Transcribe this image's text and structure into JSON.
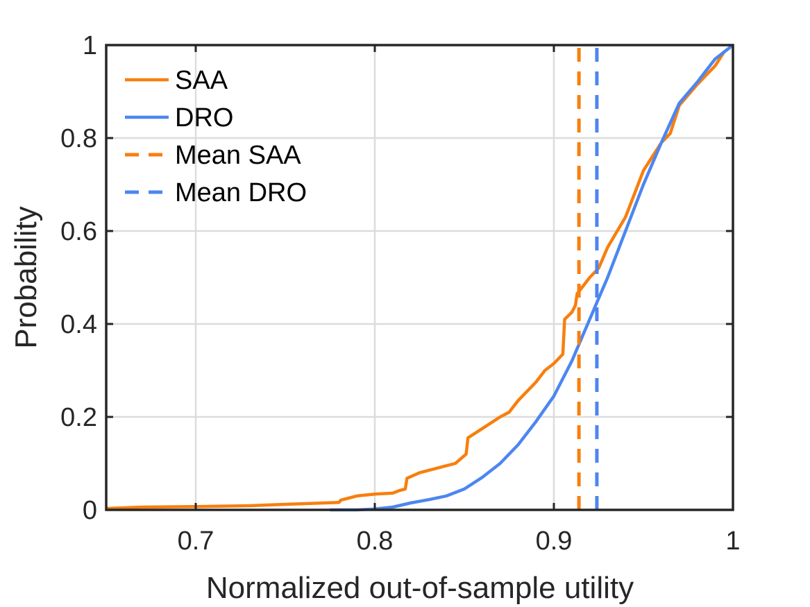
{
  "chart_data": {
    "type": "line",
    "title": "",
    "xlabel": "Normalized out-of-sample utility",
    "ylabel": "Probability",
    "xlim": [
      0.65,
      1.0
    ],
    "ylim": [
      0,
      1
    ],
    "xticks": [
      0.7,
      0.8,
      0.9,
      1.0
    ],
    "xtick_labels": [
      "0.7",
      "0.8",
      "0.9",
      "1"
    ],
    "yticks": [
      0,
      0.2,
      0.4,
      0.6,
      0.8,
      1.0
    ],
    "ytick_labels": [
      "0",
      "0.2",
      "0.4",
      "0.6",
      "0.8",
      "1"
    ],
    "grid": true,
    "legend_position": "top-left",
    "series": [
      {
        "name": "SAA",
        "style": "solid",
        "color": "#F77F0E",
        "x": [
          0.65,
          0.67,
          0.7,
          0.73,
          0.75,
          0.78,
          0.781,
          0.79,
          0.8,
          0.81,
          0.814,
          0.817,
          0.818,
          0.825,
          0.835,
          0.845,
          0.851,
          0.852,
          0.86,
          0.87,
          0.875,
          0.88,
          0.89,
          0.895,
          0.9,
          0.905,
          0.906,
          0.91,
          0.912,
          0.913,
          0.915,
          0.92,
          0.925,
          0.93,
          0.94,
          0.95,
          0.96,
          0.965,
          0.97,
          0.98,
          0.985,
          0.99,
          0.995,
          1.0
        ],
        "y": [
          0.003,
          0.006,
          0.007,
          0.009,
          0.012,
          0.016,
          0.021,
          0.03,
          0.034,
          0.036,
          0.042,
          0.045,
          0.068,
          0.08,
          0.09,
          0.1,
          0.12,
          0.155,
          0.175,
          0.2,
          0.21,
          0.235,
          0.275,
          0.3,
          0.315,
          0.335,
          0.41,
          0.425,
          0.44,
          0.465,
          0.475,
          0.5,
          0.52,
          0.565,
          0.63,
          0.73,
          0.79,
          0.81,
          0.87,
          0.915,
          0.935,
          0.955,
          0.985,
          1.0
        ]
      },
      {
        "name": "DRO",
        "style": "solid",
        "color": "#4C86F0",
        "x": [
          0.775,
          0.79,
          0.8,
          0.81,
          0.82,
          0.83,
          0.84,
          0.85,
          0.86,
          0.87,
          0.88,
          0.89,
          0.9,
          0.91,
          0.92,
          0.93,
          0.94,
          0.95,
          0.96,
          0.97,
          0.98,
          0.99,
          1.0
        ],
        "y": [
          0.0,
          0.0,
          0.002,
          0.006,
          0.015,
          0.022,
          0.03,
          0.045,
          0.07,
          0.1,
          0.14,
          0.19,
          0.245,
          0.32,
          0.41,
          0.5,
          0.6,
          0.7,
          0.79,
          0.875,
          0.92,
          0.97,
          1.0
        ]
      },
      {
        "name": "Mean SAA",
        "style": "dashed",
        "color": "#F77F0E",
        "x": [
          0.914,
          0.914
        ],
        "y": [
          0,
          1
        ]
      },
      {
        "name": "Mean DRO",
        "style": "dashed",
        "color": "#4C86F0",
        "x": [
          0.924,
          0.924
        ],
        "y": [
          0,
          1
        ]
      }
    ]
  }
}
